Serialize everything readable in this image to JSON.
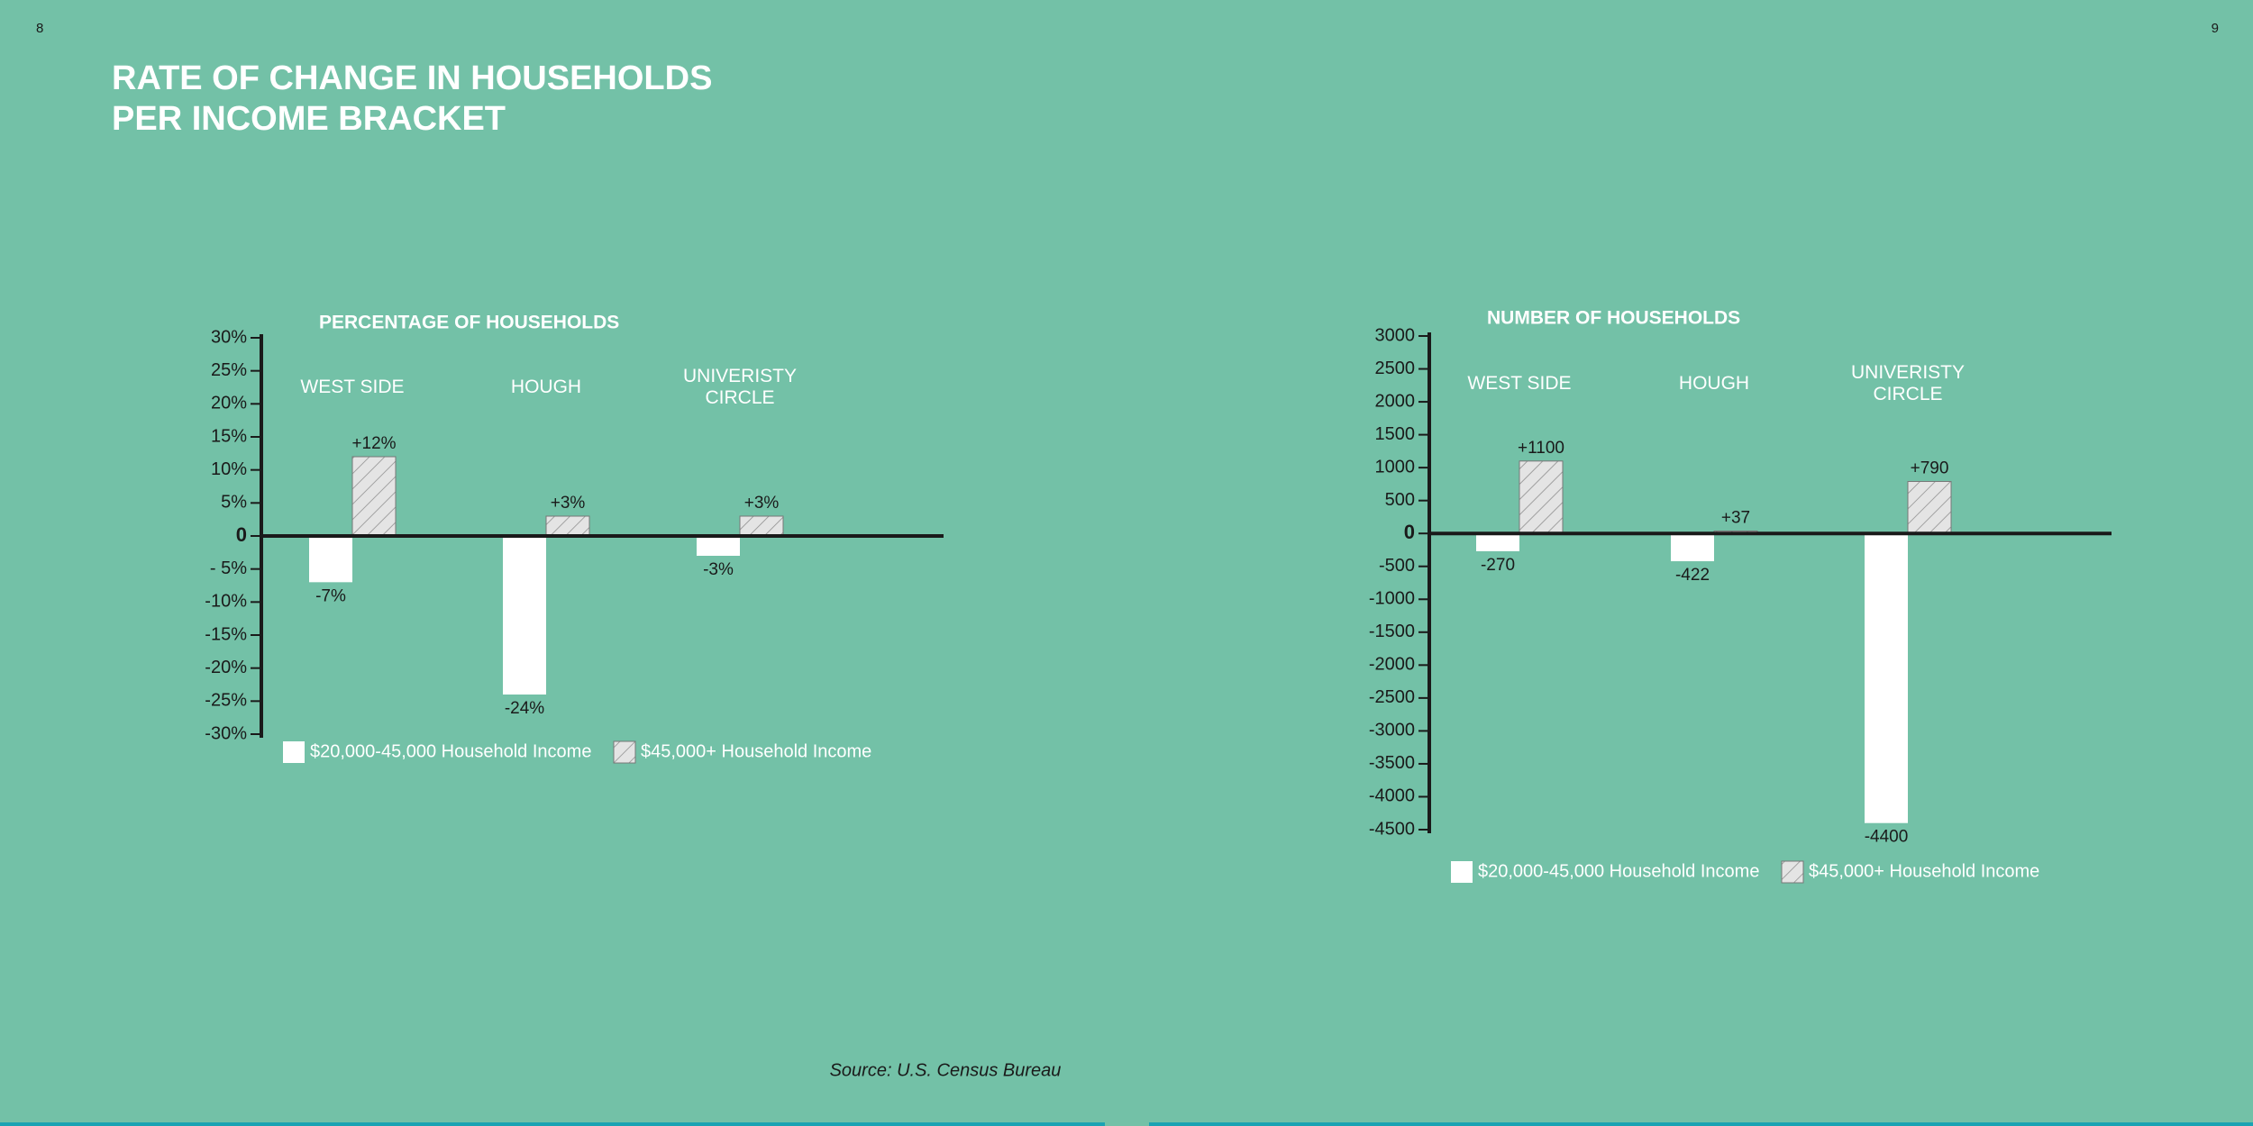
{
  "page": {
    "page_numbers": [
      8,
      9
    ],
    "title": [
      "RATE OF CHANGE IN HOUSEHOLDS",
      "PER INCOME BRACKET"
    ],
    "source": "Source: U.S. Census Bureau"
  },
  "chart_data": [
    {
      "type": "bar",
      "title": "PERCENTAGE OF HOUSEHOLDS",
      "categories": [
        "WEST SIDE",
        "HOUGH",
        "UNIVERISTY CIRCLE"
      ],
      "series": [
        {
          "name": "$20,000-45,000 Household Income",
          "color": "#ffffff",
          "values": [
            -7,
            -24,
            -3
          ],
          "value_labels": [
            "-7%",
            "-24%",
            "-3%"
          ]
        },
        {
          "name": "$45,000+ Household Income",
          "color": "#e4e4e4",
          "pattern": "hatch",
          "values": [
            12,
            3,
            3
          ],
          "value_labels": [
            "+12%",
            "+3%",
            "+3%"
          ]
        }
      ],
      "ylim": [
        -30,
        30
      ],
      "yticks": [
        {
          "value": 30,
          "label": "30%"
        },
        {
          "value": 25,
          "label": "25%"
        },
        {
          "value": 20,
          "label": "20%"
        },
        {
          "value": 15,
          "label": "15%"
        },
        {
          "value": 10,
          "label": "10%"
        },
        {
          "value": 5,
          "label": "5%"
        },
        0,
        {
          "value": -5,
          "label": "- 5%"
        },
        {
          "value": -10,
          "label": "-10%"
        },
        {
          "value": -15,
          "label": "-15%"
        },
        {
          "value": -20,
          "label": "-20%"
        },
        {
          "value": -25,
          "label": "-25%"
        },
        {
          "value": -30,
          "label": "-30%"
        }
      ]
    },
    {
      "type": "bar",
      "title": "NUMBER OF HOUSEHOLDS",
      "categories": [
        "WEST SIDE",
        "HOUGH",
        "UNIVERISTY CIRCLE"
      ],
      "series": [
        {
          "name": "$20,000-45,000 Household Income",
          "color": "#ffffff",
          "values": [
            -270,
            -422,
            -4400
          ]
        },
        {
          "name": "$45,000+ Household Income",
          "color": "#e4e4e4",
          "pattern": "hatch",
          "values": [
            1100,
            37,
            790
          ],
          "value_labels": [
            "+1100",
            "+37",
            "+790"
          ]
        }
      ],
      "ylim": [
        -4500,
        3000
      ],
      "yticks": [
        3000,
        2500,
        2000,
        1500,
        1000,
        500,
        0,
        -500,
        -1000,
        -1500,
        -2000,
        -2500,
        -3000,
        -3500,
        -4000,
        -4500
      ]
    }
  ]
}
